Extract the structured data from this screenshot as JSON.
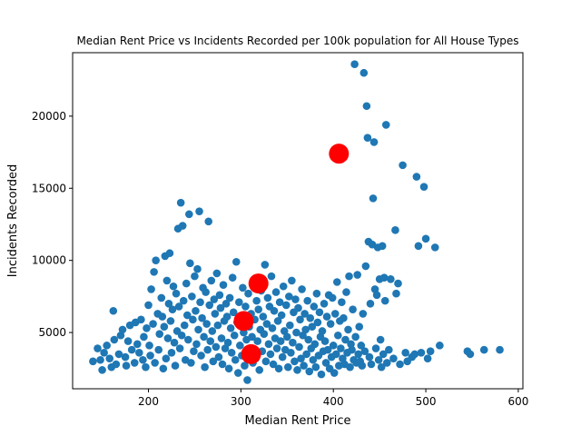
{
  "chart_data": {
    "type": "scatter",
    "title": "Median Rent Price vs Incidents Recorded per 100k population for All House Types",
    "xlabel": "Median Rent Price",
    "ylabel": "Incidents Recorded",
    "xlim": [
      118,
      605
    ],
    "ylim": [
      1100,
      24400
    ],
    "xticks": [
      200,
      300,
      400,
      500,
      600
    ],
    "yticks": [
      5000,
      10000,
      15000,
      20000
    ],
    "grid": false,
    "legend": "none",
    "colors": {
      "points": "#1f77b4",
      "highlight": "#ff0000"
    },
    "series": [
      {
        "marker": "small-circle",
        "points": [
          [
            140,
            3000
          ],
          [
            145,
            3900
          ],
          [
            148,
            3100
          ],
          [
            150,
            2400
          ],
          [
            152,
            3600
          ],
          [
            155,
            4100
          ],
          [
            158,
            3200
          ],
          [
            160,
            2600
          ],
          [
            162,
            6500
          ],
          [
            163,
            4500
          ],
          [
            165,
            2800
          ],
          [
            168,
            3500
          ],
          [
            170,
            4800
          ],
          [
            172,
            5200
          ],
          [
            175,
            3300
          ],
          [
            176,
            2700
          ],
          [
            178,
            4400
          ],
          [
            180,
            5500
          ],
          [
            182,
            3800
          ],
          [
            185,
            2900
          ],
          [
            186,
            5700
          ],
          [
            188,
            4200
          ],
          [
            190,
            3600
          ],
          [
            192,
            5900
          ],
          [
            194,
            3100
          ],
          [
            195,
            4700
          ],
          [
            197,
            2600
          ],
          [
            198,
            5300
          ],
          [
            200,
            6900
          ],
          [
            201,
            4100
          ],
          [
            202,
            3400
          ],
          [
            203,
            8000
          ],
          [
            205,
            5600
          ],
          [
            206,
            9200
          ],
          [
            207,
            2900
          ],
          [
            208,
            10000
          ],
          [
            210,
            6300
          ],
          [
            211,
            3800
          ],
          [
            212,
            4900
          ],
          [
            214,
            7400
          ],
          [
            215,
            6100
          ],
          [
            216,
            2500
          ],
          [
            217,
            5400
          ],
          [
            218,
            10300
          ],
          [
            219,
            3200
          ],
          [
            220,
            8600
          ],
          [
            221,
            4600
          ],
          [
            222,
            7000
          ],
          [
            223,
            10500
          ],
          [
            224,
            5800
          ],
          [
            225,
            3600
          ],
          [
            226,
            6600
          ],
          [
            227,
            8200
          ],
          [
            228,
            4300
          ],
          [
            229,
            2700
          ],
          [
            230,
            7700
          ],
          [
            231,
            5100
          ],
          [
            232,
            12200
          ],
          [
            233,
            6800
          ],
          [
            234,
            3900
          ],
          [
            235,
            14000
          ],
          [
            236,
            4800
          ],
          [
            237,
            12400
          ],
          [
            238,
            7200
          ],
          [
            239,
            5500
          ],
          [
            240,
            3100
          ],
          [
            241,
            8400
          ],
          [
            242,
            6200
          ],
          [
            243,
            4500
          ],
          [
            244,
            13200
          ],
          [
            245,
            9800
          ],
          [
            246,
            2900
          ],
          [
            247,
            7500
          ],
          [
            248,
            5900
          ],
          [
            249,
            3700
          ],
          [
            250,
            8900
          ],
          [
            251,
            6500
          ],
          [
            252,
            4200
          ],
          [
            253,
            9400
          ],
          [
            254,
            5200
          ],
          [
            255,
            13400
          ],
          [
            256,
            7100
          ],
          [
            257,
            3400
          ],
          [
            258,
            6000
          ],
          [
            259,
            8100
          ],
          [
            260,
            4700
          ],
          [
            261,
            2600
          ],
          [
            262,
            7800
          ],
          [
            263,
            5600
          ],
          [
            264,
            3800
          ],
          [
            265,
            12700
          ],
          [
            266,
            6900
          ],
          [
            267,
            4400
          ],
          [
            268,
            8600
          ],
          [
            269,
            5100
          ],
          [
            270,
            3000
          ],
          [
            271,
            7300
          ],
          [
            272,
            6300
          ],
          [
            273,
            4000
          ],
          [
            274,
            9100
          ],
          [
            275,
            5500
          ],
          [
            276,
            3300
          ],
          [
            277,
            7600
          ],
          [
            278,
            6700
          ],
          [
            279,
            4600
          ],
          [
            280,
            2800
          ],
          [
            281,
            8300
          ],
          [
            282,
            5800
          ],
          [
            283,
            3900
          ],
          [
            284,
            7000
          ],
          [
            285,
            6100
          ],
          [
            286,
            4300
          ],
          [
            287,
            2500
          ],
          [
            288,
            7400
          ],
          [
            289,
            5300
          ],
          [
            290,
            3600
          ],
          [
            291,
            8800
          ],
          [
            292,
            6400
          ],
          [
            293,
            4800
          ],
          [
            294,
            3100
          ],
          [
            295,
            9900
          ],
          [
            296,
            5700
          ],
          [
            297,
            2200
          ],
          [
            298,
            7100
          ],
          [
            299,
            4100
          ],
          [
            300,
            6000
          ],
          [
            301,
            3400
          ],
          [
            302,
            8100
          ],
          [
            303,
            5000
          ],
          [
            304,
            2700
          ],
          [
            305,
            6800
          ],
          [
            306,
            4500
          ],
          [
            307,
            1700
          ],
          [
            308,
            7700
          ],
          [
            309,
            5400
          ],
          [
            310,
            3800
          ],
          [
            311,
            6300
          ],
          [
            312,
            4700
          ],
          [
            313,
            2900
          ],
          [
            314,
            8500
          ],
          [
            315,
            5900
          ],
          [
            316,
            3200
          ],
          [
            317,
            7200
          ],
          [
            318,
            4400
          ],
          [
            319,
            6600
          ],
          [
            320,
            2400
          ],
          [
            321,
            5200
          ],
          [
            322,
            7900
          ],
          [
            323,
            3700
          ],
          [
            324,
            6100
          ],
          [
            325,
            4900
          ],
          [
            326,
            9700
          ],
          [
            327,
            3000
          ],
          [
            328,
            5600
          ],
          [
            329,
            7400
          ],
          [
            330,
            4200
          ],
          [
            331,
            6800
          ],
          [
            332,
            3500
          ],
          [
            333,
            8900
          ],
          [
            334,
            5300
          ],
          [
            335,
            2800
          ],
          [
            336,
            6500
          ],
          [
            337,
            4600
          ],
          [
            338,
            7800
          ],
          [
            339,
            3900
          ],
          [
            340,
            5800
          ],
          [
            341,
            2500
          ],
          [
            342,
            7100
          ],
          [
            343,
            4400
          ],
          [
            344,
            6200
          ],
          [
            345,
            3300
          ],
          [
            346,
            8200
          ],
          [
            347,
            5100
          ],
          [
            348,
            3800
          ],
          [
            349,
            6900
          ],
          [
            350,
            4700
          ],
          [
            351,
            2600
          ],
          [
            352,
            7500
          ],
          [
            353,
            5500
          ],
          [
            354,
            3600
          ],
          [
            355,
            8600
          ],
          [
            356,
            4300
          ],
          [
            357,
            6400
          ],
          [
            358,
            3000
          ],
          [
            359,
            7300
          ],
          [
            360,
            5000
          ],
          [
            361,
            2400
          ],
          [
            362,
            6700
          ],
          [
            363,
            4000
          ],
          [
            364,
            5900
          ],
          [
            365,
            3200
          ],
          [
            366,
            8000
          ],
          [
            367,
            4800
          ],
          [
            368,
            2700
          ],
          [
            369,
            6300
          ],
          [
            370,
            5200
          ],
          [
            371,
            3500
          ],
          [
            372,
            7200
          ],
          [
            373,
            4500
          ],
          [
            374,
            2300
          ],
          [
            375,
            6000
          ],
          [
            376,
            3900
          ],
          [
            377,
            5400
          ],
          [
            378,
            3100
          ],
          [
            379,
            6800
          ],
          [
            380,
            4200
          ],
          [
            381,
            2600
          ],
          [
            382,
            7700
          ],
          [
            383,
            5700
          ],
          [
            384,
            3400
          ],
          [
            385,
            6400
          ],
          [
            386,
            4700
          ],
          [
            387,
            2100
          ],
          [
            388,
            5100
          ],
          [
            389,
            3700
          ],
          [
            390,
            7000
          ],
          [
            391,
            4400
          ],
          [
            392,
            2900
          ],
          [
            393,
            6100
          ],
          [
            394,
            3800
          ],
          [
            395,
            7600
          ],
          [
            396,
            2500
          ],
          [
            397,
            5600
          ],
          [
            398,
            3300
          ],
          [
            399,
            7400
          ],
          [
            400,
            4100
          ],
          [
            401,
            2200
          ],
          [
            402,
            6300
          ],
          [
            403,
            3500
          ],
          [
            404,
            8500
          ],
          [
            405,
            4800
          ],
          [
            406,
            2700
          ],
          [
            407,
            5800
          ],
          [
            408,
            3900
          ],
          [
            409,
            7100
          ],
          [
            410,
            3200
          ],
          [
            411,
            6000
          ],
          [
            412,
            2800
          ],
          [
            413,
            4500
          ],
          [
            414,
            7800
          ],
          [
            415,
            3600
          ],
          [
            416,
            5200
          ],
          [
            417,
            8900
          ],
          [
            418,
            2600
          ],
          [
            419,
            4200
          ],
          [
            420,
            3800
          ],
          [
            421,
            6600
          ],
          [
            422,
            3100
          ],
          [
            423,
            23600
          ],
          [
            424,
            4700
          ],
          [
            425,
            2900
          ],
          [
            426,
            9000
          ],
          [
            427,
            3500
          ],
          [
            428,
            5400
          ],
          [
            429,
            3000
          ],
          [
            430,
            4100
          ],
          [
            431,
            2700
          ],
          [
            432,
            6300
          ],
          [
            433,
            23000
          ],
          [
            434,
            3700
          ],
          [
            435,
            9600
          ],
          [
            436,
            20700
          ],
          [
            437,
            18500
          ],
          [
            438,
            11300
          ],
          [
            439,
            3300
          ],
          [
            440,
            7000
          ],
          [
            441,
            2800
          ],
          [
            442,
            11100
          ],
          [
            443,
            14300
          ],
          [
            444,
            18200
          ],
          [
            445,
            8000
          ],
          [
            446,
            3900
          ],
          [
            447,
            7600
          ],
          [
            448,
            10900
          ],
          [
            449,
            3100
          ],
          [
            450,
            8700
          ],
          [
            451,
            4500
          ],
          [
            452,
            2600
          ],
          [
            453,
            11000
          ],
          [
            454,
            3500
          ],
          [
            455,
            8800
          ],
          [
            456,
            7200
          ],
          [
            457,
            19400
          ],
          [
            458,
            2900
          ],
          [
            460,
            3800
          ],
          [
            462,
            8700
          ],
          [
            465,
            3200
          ],
          [
            467,
            12100
          ],
          [
            468,
            7700
          ],
          [
            470,
            8400
          ],
          [
            472,
            2800
          ],
          [
            475,
            16600
          ],
          [
            478,
            3600
          ],
          [
            480,
            3000
          ],
          [
            485,
            3300
          ],
          [
            488,
            3500
          ],
          [
            490,
            15800
          ],
          [
            492,
            11000
          ],
          [
            495,
            3600
          ],
          [
            498,
            15100
          ],
          [
            500,
            11500
          ],
          [
            502,
            3200
          ],
          [
            505,
            3700
          ],
          [
            510,
            10900
          ],
          [
            515,
            4100
          ],
          [
            545,
            3700
          ],
          [
            548,
            3500
          ],
          [
            563,
            3800
          ],
          [
            580,
            3800
          ]
        ]
      },
      {
        "marker": "large-circle",
        "points": [
          [
            406,
            17400
          ],
          [
            319,
            8400
          ],
          [
            303,
            5800
          ],
          [
            311,
            3500
          ]
        ]
      }
    ]
  }
}
